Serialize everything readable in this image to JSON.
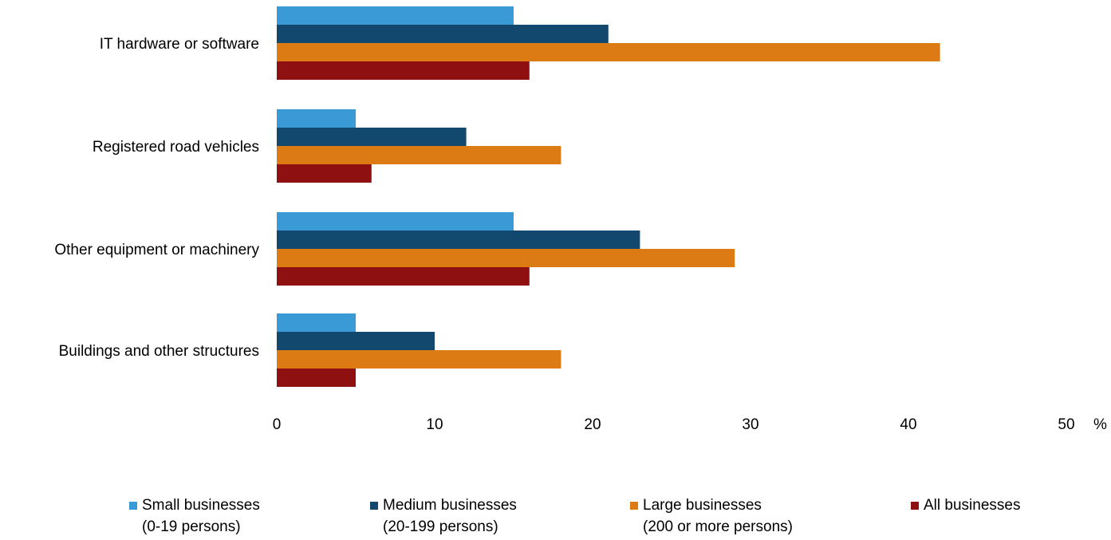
{
  "chart_data": {
    "type": "bar",
    "orientation": "horizontal",
    "categories": [
      "IT hardware or software",
      "Registered road vehicles",
      "Other equipment or machinery",
      "Buildings and other structures"
    ],
    "series": [
      {
        "name": "Small businesses (0-19 persons)",
        "legend_line1": "Small businesses",
        "legend_line2": "(0-19 persons)",
        "color": "#3a9ad6",
        "values": [
          15,
          5,
          15,
          5
        ]
      },
      {
        "name": "Medium businesses (20-199 persons)",
        "legend_line1": "Medium businesses",
        "legend_line2": "(20-199 persons)",
        "color": "#12476e",
        "values": [
          21,
          12,
          23,
          10
        ]
      },
      {
        "name": "Large businesses (200 or more persons)",
        "legend_line1": "Large businesses",
        "legend_line2": "(200 or more persons)",
        "color": "#dc7b13",
        "values": [
          42,
          18,
          29,
          18
        ]
      },
      {
        "name": "All businesses",
        "legend_line1": "All businesses",
        "legend_line2": "",
        "color": "#8f1010",
        "values": [
          16,
          6,
          16,
          5
        ]
      }
    ],
    "xlim": [
      0,
      50
    ],
    "xticks": [
      "0",
      "10",
      "20",
      "30",
      "40",
      "50"
    ],
    "xunit": "%",
    "grid": false,
    "legend_position": "bottom"
  }
}
